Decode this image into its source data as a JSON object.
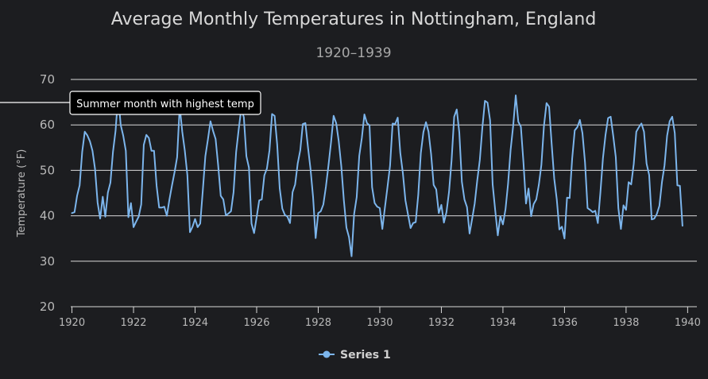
{
  "chart_data": {
    "type": "line",
    "title": "Average Monthly Temperatures in Nottingham, England",
    "subtitle": "1920–1939",
    "ylabel": "Temperature (°F)",
    "xlabel": "",
    "ylim": [
      20,
      70
    ],
    "xlim": [
      1919.96,
      1940.3
    ],
    "yticks": [
      20,
      30,
      40,
      50,
      60,
      70
    ],
    "xticks": [
      1920,
      1922,
      1924,
      1926,
      1928,
      1930,
      1932,
      1934,
      1936,
      1938,
      1940
    ],
    "grid": true,
    "legend_position": "bottom-center",
    "colors": {
      "series": "#7cb5ec",
      "grid": "#d9d9d9",
      "background": "#1c1d20"
    },
    "annotation": {
      "text": "Summer month with highest temp",
      "x": 1921.54,
      "y": 66.5
    },
    "series": [
      {
        "name": "Series 1",
        "x_start": 1920.0,
        "x_step": 0.08333,
        "values": [
          40.6,
          40.8,
          44.4,
          46.7,
          54.1,
          58.5,
          57.7,
          56.4,
          54.3,
          50.3,
          42.9,
          39.4,
          44.2,
          39.8,
          45.1,
          47.3,
          54.1,
          58.7,
          66.5,
          60.0,
          57.6,
          54.3,
          39.7,
          42.8,
          37.5,
          38.7,
          39.8,
          42.5,
          55.6,
          57.8,
          57.1,
          54.3,
          54.3,
          46.6,
          41.8,
          41.8,
          42.0,
          40.0,
          43.6,
          46.7,
          49.6,
          52.9,
          64.1,
          58.5,
          54.3,
          48.9,
          36.4,
          37.6,
          39.3,
          37.5,
          38.3,
          45.5,
          53.1,
          56.8,
          60.8,
          58.7,
          56.9,
          51.1,
          44.4,
          43.6,
          40.1,
          40.5,
          41.0,
          45.2,
          54.0,
          59.0,
          63.6,
          61.7,
          53.1,
          50.6,
          38.3,
          36.2,
          39.7,
          43.4,
          43.6,
          48.9,
          50.4,
          54.4,
          62.4,
          62.0,
          55.7,
          46.0,
          41.6,
          40.2,
          39.8,
          38.4,
          45.2,
          46.9,
          51.5,
          54.4,
          60.2,
          60.4,
          55.1,
          50.3,
          44.1,
          35.1,
          40.6,
          41.0,
          42.5,
          46.4,
          51.1,
          56.2,
          62.0,
          60.4,
          56.4,
          50.9,
          43.4,
          37.4,
          35.3,
          31.1,
          40.4,
          44.1,
          53.2,
          57.1,
          62.3,
          60.4,
          59.9,
          46.3,
          42.8,
          42.0,
          41.7,
          37.1,
          41.8,
          46.3,
          51.0,
          60.3,
          60.2,
          61.6,
          53.8,
          49.4,
          43.4,
          40.3,
          37.3,
          38.4,
          38.6,
          44.6,
          53.8,
          58.4,
          60.6,
          58.5,
          53.6,
          46.8,
          45.8,
          40.6,
          42.4,
          38.5,
          40.8,
          45.3,
          52.3,
          61.8,
          63.4,
          58.3,
          47.5,
          43.6,
          41.9,
          36.1,
          39.3,
          42.7,
          47.8,
          52.3,
          59.5,
          65.3,
          64.9,
          61.0,
          46.9,
          41.2,
          35.7,
          39.9,
          38.1,
          41.4,
          47.0,
          54.5,
          59.8,
          66.5,
          60.7,
          59.6,
          51.8,
          42.7,
          46.0,
          39.9,
          42.6,
          43.6,
          46.8,
          51.2,
          59.8,
          64.8,
          64.0,
          55.8,
          48.2,
          43.6,
          37.0,
          37.6,
          35.0,
          44.0,
          43.9,
          52.6,
          58.8,
          59.5,
          61.1,
          58.2,
          51.8,
          41.7,
          41.3,
          40.8,
          41.1,
          38.4,
          45.1,
          52.7,
          57.8,
          61.5,
          61.8,
          57.6,
          52.9,
          41.7,
          37.1,
          42.3,
          41.3,
          47.4,
          46.9,
          51.4,
          58.5,
          59.5,
          60.3,
          58.5,
          51.5,
          49.0,
          39.2,
          39.4,
          40.4,
          42.2,
          47.4,
          51.1,
          57.6,
          60.8,
          61.8,
          58.2,
          46.7,
          46.6,
          37.8
        ]
      }
    ]
  }
}
